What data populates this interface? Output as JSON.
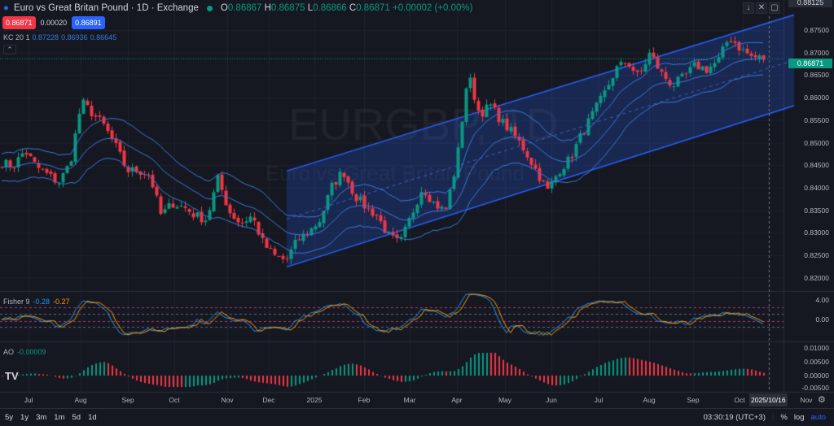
{
  "header": {
    "symbol_title": "Euro vs Great Britan Pound · 1D · Exchange",
    "ohlc": {
      "o_label": "O",
      "o": "0.86867",
      "h_label": "H",
      "h": "0.86875",
      "l_label": "L",
      "l": "0.86866",
      "c_label": "C",
      "c": "0.86871",
      "change": "+0.00002 (+0.00%)"
    },
    "sell_price": "0.86871",
    "spread": "0.00020",
    "buy_price": "0.86891"
  },
  "watermark": {
    "symbol": "EURGBP, 1D",
    "description": "Euro vs Great Britan Pound"
  },
  "indicators": {
    "kc": {
      "label": "KC 20 1",
      "values": [
        "0.87228",
        "0.86936",
        "0.86645"
      ]
    },
    "fisher": {
      "label": "Fisher 9",
      "values": [
        "-0.28",
        "-0.27"
      ]
    },
    "ao": {
      "label": "AO",
      "value": "-0.00009"
    }
  },
  "price_axis": {
    "top_label": "0.88125",
    "current_price": "0.86871",
    "ticks": [
      "0.87500",
      "0.87000",
      "0.86500",
      "0.86000",
      "0.85500",
      "0.85000",
      "0.84500",
      "0.84000",
      "0.83500",
      "0.83000",
      "0.82500",
      "0.82000"
    ],
    "fisher_ticks": [
      "4.00",
      "0.00"
    ],
    "ao_ticks": [
      "0.01000",
      "0.00500",
      "0.00000",
      "-0.00500"
    ]
  },
  "time_axis": {
    "labels": [
      "Jul",
      "Aug",
      "Sep",
      "Oct",
      "Nov",
      "Dec",
      "2025",
      "Feb",
      "Mar",
      "Apr",
      "May",
      "Jun",
      "Jul",
      "Aug",
      "Sep",
      "Oct",
      "Nov"
    ],
    "crosshair_date": "2025/10/16"
  },
  "bottom_bar": {
    "ranges": [
      "5y",
      "1y",
      "3m",
      "1m",
      "5d",
      "1d"
    ],
    "clock": "03:30:19 (UTC+3)",
    "percent": "%",
    "log": "log",
    "auto": "auto"
  },
  "colors": {
    "up": "#089981",
    "down": "#f23645",
    "kc": "#3b78d8",
    "channel": "#2962ff",
    "fisher1": "#2196f3",
    "fisher2": "#ff9800",
    "background": "#151821"
  },
  "chart_data": {
    "type": "candlestick",
    "approx_close_path": [
      0.8456,
      0.8447,
      0.8483,
      0.8447,
      0.8429,
      0.8411,
      0.8456,
      0.8591,
      0.8564,
      0.8537,
      0.8492,
      0.8438,
      0.8438,
      0.8429,
      0.8338,
      0.8366,
      0.8357,
      0.8338,
      0.8329,
      0.842,
      0.8347,
      0.832,
      0.8338,
      0.8275,
      0.8248,
      0.8239,
      0.8284,
      0.8302,
      0.8329,
      0.8402,
      0.8438,
      0.8384,
      0.8357,
      0.8338,
      0.8293,
      0.8275,
      0.8338,
      0.8402,
      0.8366,
      0.8347,
      0.8456,
      0.8654,
      0.8564,
      0.8582,
      0.8546,
      0.8519,
      0.8483,
      0.8438,
      0.8393,
      0.8438,
      0.8465,
      0.8519,
      0.8564,
      0.8609,
      0.8663,
      0.8681,
      0.8645,
      0.8699,
      0.8654,
      0.8627,
      0.8645,
      0.8672,
      0.8663,
      0.8681,
      0.8736,
      0.8708,
      0.869,
      0.8687
    ],
    "regression_channel": {
      "start_upper": 0.8437,
      "start_lower": 0.8224,
      "end_upper": 0.8784,
      "end_lower": 0.8582
    },
    "ylim": [
      0.8185,
      0.8815
    ]
  }
}
